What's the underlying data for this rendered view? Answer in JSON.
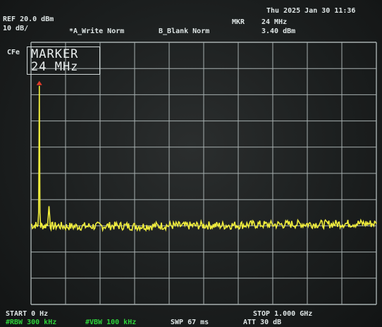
{
  "header": {
    "datetime": "Thu 2025 Jan 30 11:36",
    "ref_level": "REF 20.0 dBm",
    "scale": "10 dB/",
    "trace_a": "*A_Write Norm",
    "trace_b": "B_Blank Norm",
    "marker_label": "MKR",
    "marker_freq": "24 MHz",
    "marker_level": "3.40 dBm",
    "cfe_label": "CFe"
  },
  "marker_box": {
    "line1": "MARKER",
    "line2": "24 MHz"
  },
  "footer": {
    "start": "START 0 Hz",
    "stop": "STOP 1.000 GHz",
    "rbw": "#RBW 300 kHz",
    "vbw": "#VBW 100 kHz",
    "sweep": "SWP 67 ms",
    "attenuation": "ATT 30 dB"
  },
  "colors": {
    "trace": "#f1ee3c",
    "marker": "#e23b2a",
    "grid": "#a7b0b0",
    "text": "#dfe6e6",
    "footer_green": "#2fd13a"
  },
  "chart_data": {
    "type": "line",
    "x_range_hz": [
      0,
      1000000000
    ],
    "reference_level_dbm": 20.0,
    "scale_db_per_div": 10,
    "grid": true,
    "marker": {
      "freq_mhz": 24,
      "level_dbm": 3.4
    },
    "series": [
      {
        "x_mhz": [
          0,
          4,
          8,
          12,
          16,
          20,
          22,
          24,
          26,
          28,
          32,
          36,
          40,
          44,
          48,
          52,
          56,
          60,
          80,
          100,
          150,
          200,
          250,
          300,
          350,
          400,
          450,
          500,
          550,
          600,
          650,
          700,
          750,
          800,
          850,
          900,
          950,
          1000
        ],
        "level_dbm": [
          -49.5,
          -49.8,
          -50.2,
          -49.7,
          -49.9,
          -50.0,
          -45.0,
          3.4,
          -45.0,
          -50.1,
          -49.9,
          -50.0,
          -50.1,
          -49.6,
          -49.9,
          -42.5,
          -49.8,
          -50.2,
          -50.0,
          -50.3,
          -50.2,
          -50.1,
          -50.0,
          -50.2,
          -50.1,
          -49.9,
          -50.0,
          -49.8,
          -49.9,
          -49.7,
          -49.5,
          -49.6,
          -49.4,
          -49.3,
          -49.4,
          -49.2,
          -49.1,
          -49.2
        ]
      }
    ]
  }
}
